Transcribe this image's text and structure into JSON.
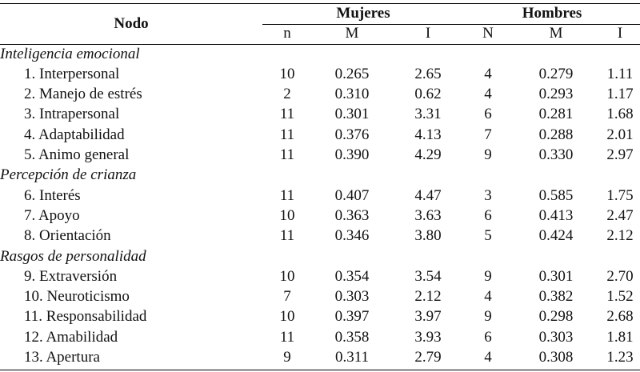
{
  "headers": {
    "node": "Nodo",
    "group_women": "Mujeres",
    "group_men": "Hombres",
    "women_cols": [
      "n",
      "M",
      "I"
    ],
    "men_cols": [
      "N",
      "M",
      "I"
    ]
  },
  "sections": [
    {
      "title": "Inteligencia emocional",
      "rows": [
        {
          "label": "1. Interpersonal",
          "w_n": "10",
          "w_m": "0.265",
          "w_i": "2.65",
          "m_n": "4",
          "m_m": "0.279",
          "m_i": "1.11"
        },
        {
          "label": "2. Manejo de estrés",
          "w_n": "2",
          "w_m": "0.310",
          "w_i": "0.62",
          "m_n": "4",
          "m_m": "0.293",
          "m_i": "1.17"
        },
        {
          "label": "3. Intrapersonal",
          "w_n": "11",
          "w_m": "0.301",
          "w_i": "3.31",
          "m_n": "6",
          "m_m": "0.281",
          "m_i": "1.68"
        },
        {
          "label": "4. Adaptabilidad",
          "w_n": "11",
          "w_m": "0.376",
          "w_i": "4.13",
          "m_n": "7",
          "m_m": "0.288",
          "m_i": "2.01"
        },
        {
          "label": "5. Animo general",
          "w_n": "11",
          "w_m": "0.390",
          "w_i": "4.29",
          "m_n": "9",
          "m_m": "0.330",
          "m_i": "2.97"
        }
      ]
    },
    {
      "title": "Percepción de crianza",
      "rows": [
        {
          "label": "6. Interés",
          "w_n": "11",
          "w_m": "0.407",
          "w_i": "4.47",
          "m_n": "3",
          "m_m": "0.585",
          "m_i": "1.75"
        },
        {
          "label": "7. Apoyo",
          "w_n": "10",
          "w_m": "0.363",
          "w_i": "3.63",
          "m_n": "6",
          "m_m": "0.413",
          "m_i": "2.47"
        },
        {
          "label": "8. Orientación",
          "w_n": "11",
          "w_m": "0.346",
          "w_i": "3.80",
          "m_n": "5",
          "m_m": "0.424",
          "m_i": "2.12"
        }
      ]
    },
    {
      "title": "Rasgos de personalidad",
      "rows": [
        {
          "label": "9. Extraversión",
          "w_n": "10",
          "w_m": "0.354",
          "w_i": "3.54",
          "m_n": "9",
          "m_m": "0.301",
          "m_i": "2.70"
        },
        {
          "label": "10. Neuroticismo",
          "w_n": "7",
          "w_m": "0.303",
          "w_i": "2.12",
          "m_n": "4",
          "m_m": "0.382",
          "m_i": "1.52"
        },
        {
          "label": "11. Responsabilidad",
          "w_n": "10",
          "w_m": "0.397",
          "w_i": "3.97",
          "m_n": "9",
          "m_m": "0.298",
          "m_i": "2.68"
        },
        {
          "label": "12. Amabilidad",
          "w_n": "11",
          "w_m": "0.358",
          "w_i": "3.93",
          "m_n": "6",
          "m_m": "0.303",
          "m_i": "1.81"
        },
        {
          "label": "13. Apertura",
          "w_n": "9",
          "w_m": "0.311",
          "w_i": "2.79",
          "m_n": "4",
          "m_m": "0.308",
          "m_i": "1.23"
        }
      ]
    }
  ]
}
